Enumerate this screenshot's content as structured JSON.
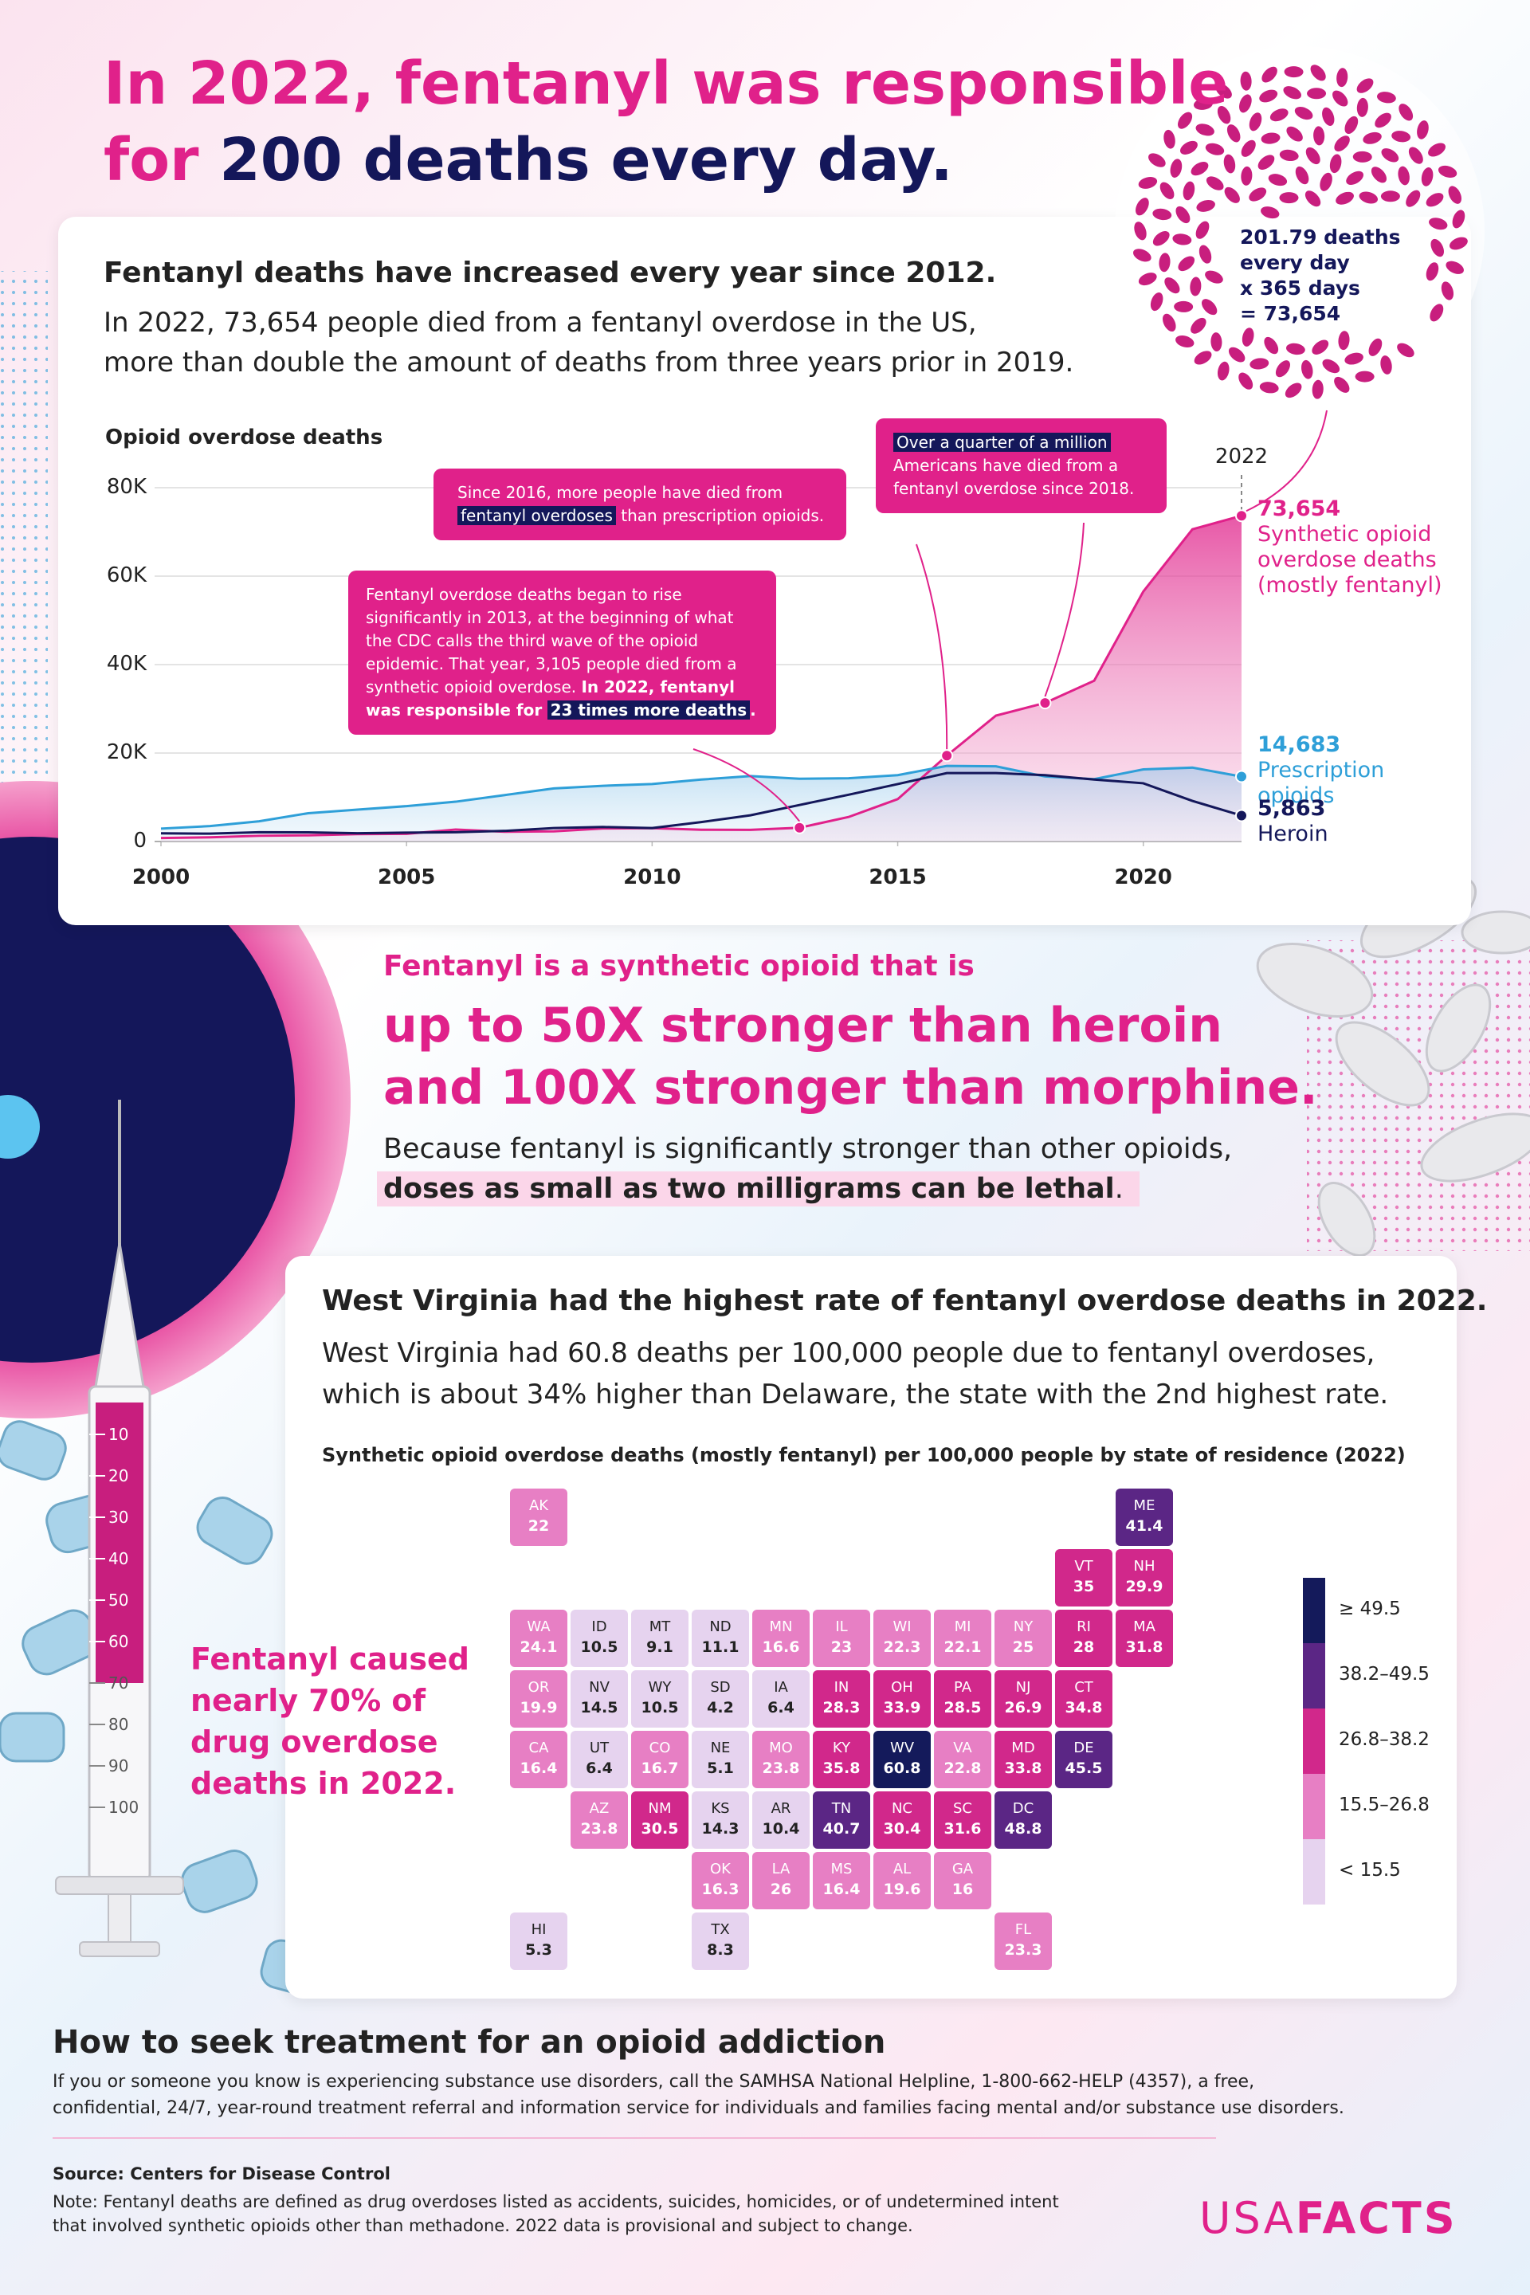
{
  "headline": [
    "In 2022, fentanyl was responsible",
    "for",
    "200 deaths every day."
  ],
  "pill_note": [
    "201.79 deaths",
    "every day",
    "x 365 days",
    "= 73,654"
  ],
  "chart_data": [
    {
      "type": "line",
      "title": "Fentanyl deaths have increased every year since 2012.",
      "description": [
        "In 2022, 73,654 people died from a fentanyl overdose in the US,",
        "more than double the amount of deaths from three years prior in 2019."
      ],
      "y_label": "Opioid overdose deaths",
      "x": [
        2000,
        2001,
        2002,
        2003,
        2004,
        2005,
        2006,
        2007,
        2008,
        2009,
        2010,
        2011,
        2012,
        2013,
        2014,
        2015,
        2016,
        2017,
        2018,
        2019,
        2020,
        2021,
        2022
      ],
      "xlim": [
        2000,
        2022
      ],
      "xticks": [
        2000,
        2005,
        2010,
        2015,
        2020
      ],
      "ylim": [
        0,
        80000
      ],
      "yticks": [
        0,
        {
          "value": 20000,
          "label": "20K"
        },
        {
          "value": 40000,
          "label": "40K"
        },
        {
          "value": 60000,
          "label": "60K"
        },
        {
          "value": 80000,
          "label": "80K"
        }
      ],
      "grid": true,
      "series": [
        {
          "name": "Synthetic opioid overdose deaths (mostly fentanyl)",
          "color": "#e0218a",
          "values": [
            782,
            957,
            1295,
            1400,
            1664,
            1742,
            2707,
            2213,
            2306,
            2946,
            3007,
            2666,
            2628,
            3105,
            5544,
            9580,
            19413,
            28466,
            31335,
            36359,
            56516,
            70601,
            73654
          ],
          "value_labels": [
            null,
            null,
            null,
            null,
            null,
            null,
            null,
            null,
            null,
            null,
            null,
            null,
            null,
            null,
            null,
            null,
            null,
            null,
            null,
            null,
            null,
            null,
            "73,654"
          ]
        },
        {
          "name": "Prescription opioids",
          "color": "#2e9fd8",
          "values": [
            2917,
            3491,
            4573,
            6400,
            7200,
            8000,
            9000,
            10500,
            12000,
            12600,
            13000,
            14000,
            14800,
            14200,
            14300,
            15000,
            17100,
            17000,
            14700,
            14100,
            16300,
            16700,
            14683
          ],
          "value_labels": [
            null,
            null,
            null,
            null,
            null,
            null,
            null,
            null,
            null,
            null,
            null,
            null,
            null,
            null,
            null,
            null,
            null,
            null,
            null,
            null,
            null,
            null,
            "14,683"
          ]
        },
        {
          "name": "Heroin",
          "color": "#14175a",
          "values": [
            1842,
            1779,
            2089,
            2080,
            1878,
            2009,
            2088,
            2399,
            3041,
            3278,
            3036,
            4397,
            5925,
            8257,
            10574,
            12989,
            15469,
            15482,
            14996,
            14019,
            13165,
            9173,
            5863
          ],
          "value_labels": [
            null,
            null,
            null,
            null,
            null,
            null,
            null,
            null,
            null,
            null,
            null,
            null,
            null,
            null,
            null,
            null,
            null,
            null,
            null,
            null,
            null,
            null,
            "5,863"
          ]
        }
      ],
      "annotations": [
        [
          "Fentanyl overdose deaths began to rise significantly in 2013, at the beginning of what the CDC calls the third wave of the opioid epidemic. That year, 3,105 people died from a synthetic opioid overdose.",
          "In 2022, fentanyl was responsible for",
          "23 times more deaths",
          "."
        ],
        [
          "Since 2016, more people have died from",
          "fentanyl overdoses",
          "than prescription opioids."
        ],
        [
          "Over a quarter of a million",
          "Americans have died from a fentanyl overdose since 2018."
        ]
      ]
    },
    {
      "type": "map",
      "title": "West Virginia had the highest rate of fentanyl overdose deaths in 2022.",
      "description": [
        "West Virginia had 60.8 deaths per 100,000 people due to fentanyl overdoses,",
        "which is about 34% higher than Delaware, the state with the 2nd highest rate."
      ],
      "subtitle": "Synthetic opioid overdose deaths (mostly fentanyl) per 100,000 people by state of residence (2022)",
      "legend": [
        {
          "label": "≥ 49.5",
          "color": "#141a5b"
        },
        {
          "label": "38.2–49.5",
          "color": "#5b2685"
        },
        {
          "label": "26.8–38.2",
          "color": "#d1288b"
        },
        {
          "label": "15.5–26.8",
          "color": "#e77fc4"
        },
        {
          "label": "< 15.5",
          "color": "#e6d3ef"
        }
      ],
      "states": [
        {
          "name": "WA",
          "value": 24.1,
          "color": "#e77fc4"
        },
        {
          "name": "OR",
          "value": 19.9,
          "color": "#e77fc4"
        },
        {
          "name": "CA",
          "value": 16.4,
          "color": "#e77fc4"
        },
        {
          "name": "NV",
          "value": 14.5,
          "color": "#e6d3ef"
        },
        {
          "name": "ID",
          "value": 10.5,
          "color": "#e6d3ef"
        },
        {
          "name": "MT",
          "value": 9.1,
          "color": "#e6d3ef"
        },
        {
          "name": "WY",
          "value": 10.5,
          "color": "#e6d3ef"
        },
        {
          "name": "UT",
          "value": 6.4,
          "color": "#e6d3ef"
        },
        {
          "name": "AZ",
          "value": 23.8,
          "color": "#e77fc4"
        },
        {
          "name": "CO",
          "value": 16.7,
          "color": "#e77fc4"
        },
        {
          "name": "NM",
          "value": 30.5,
          "color": "#d1288b"
        },
        {
          "name": "ND",
          "value": 11.1,
          "color": "#e6d3ef"
        },
        {
          "name": "SD",
          "value": 4.2,
          "color": "#e6d3ef"
        },
        {
          "name": "NE",
          "value": 5.1,
          "color": "#e6d3ef"
        },
        {
          "name": "KS",
          "value": 14.3,
          "color": "#e6d3ef"
        },
        {
          "name": "OK",
          "value": 16.3,
          "color": "#e77fc4"
        },
        {
          "name": "TX",
          "value": 8.3,
          "color": "#e6d3ef"
        },
        {
          "name": "MN",
          "value": 16.6,
          "color": "#e77fc4"
        },
        {
          "name": "IA",
          "value": 6.4,
          "color": "#e6d3ef"
        },
        {
          "name": "MO",
          "value": 23.8,
          "color": "#e77fc4"
        },
        {
          "name": "AR",
          "value": 10.4,
          "color": "#e6d3ef"
        },
        {
          "name": "LA",
          "value": 26,
          "color": "#e77fc4"
        },
        {
          "name": "WI",
          "value": 22.3,
          "color": "#e77fc4"
        },
        {
          "name": "IL",
          "value": 23,
          "color": "#e77fc4"
        },
        {
          "name": "MI",
          "value": 22.1,
          "color": "#e77fc4"
        },
        {
          "name": "IN",
          "value": 28.3,
          "color": "#d1288b"
        },
        {
          "name": "OH",
          "value": 33.9,
          "color": "#d1288b"
        },
        {
          "name": "KY",
          "value": 35.8,
          "color": "#d1288b"
        },
        {
          "name": "TN",
          "value": 40.7,
          "color": "#5b2685"
        },
        {
          "name": "MS",
          "value": 16.4,
          "color": "#e77fc4"
        },
        {
          "name": "AL",
          "value": 19.6,
          "color": "#e77fc4"
        },
        {
          "name": "GA",
          "value": 16,
          "color": "#e77fc4"
        },
        {
          "name": "FL",
          "value": 23.3,
          "color": "#e77fc4"
        },
        {
          "name": "SC",
          "value": 31.6,
          "color": "#d1288b"
        },
        {
          "name": "NC",
          "value": 30.4,
          "color": "#d1288b"
        },
        {
          "name": "VA",
          "value": 22.8,
          "color": "#e77fc4"
        },
        {
          "name": "WV",
          "value": 60.8,
          "color": "#141a5b"
        },
        {
          "name": "PA",
          "value": 28.5,
          "color": "#d1288b"
        },
        {
          "name": "NY",
          "value": 25,
          "color": "#e77fc4"
        },
        {
          "name": "VT",
          "value": 35,
          "color": "#d1288b"
        },
        {
          "name": "ME",
          "value": 41.4,
          "color": "#5b2685"
        },
        {
          "name": "NH",
          "value": 29.9,
          "color": "#d1288b"
        },
        {
          "name": "MA",
          "value": 31.8,
          "color": "#d1288b"
        },
        {
          "name": "RI",
          "value": 28,
          "color": "#d1288b"
        },
        {
          "name": "CT",
          "value": 34.8,
          "color": "#d1288b"
        },
        {
          "name": "NJ",
          "value": 26.9,
          "color": "#d1288b"
        },
        {
          "name": "DE",
          "value": 45.5,
          "color": "#5b2685"
        },
        {
          "name": "MD",
          "value": 33.8,
          "color": "#d1288b"
        },
        {
          "name": "DC",
          "value": 48.8,
          "color": "#5b2685"
        },
        {
          "name": "AK",
          "value": 22,
          "color": "#e77fc4"
        },
        {
          "name": "HI",
          "value": 5.3,
          "color": "#e6d3ef"
        }
      ]
    }
  ],
  "strength": {
    "lead": "Fentanyl is a synthetic opioid that is",
    "big": [
      "up to 50X stronger than heroin",
      "and 100X stronger than morphine."
    ],
    "body": "Because fentanyl is significantly stronger than other opioids,",
    "highlight": "doses as small as two milligrams can be lethal",
    "end": "."
  },
  "syringe_marks": [
    10,
    20,
    30,
    40,
    50,
    60,
    70,
    80,
    90,
    100
  ],
  "left_stat": [
    "Fentanyl caused",
    "nearly 70% of",
    "drug overdose",
    "deaths in 2022."
  ],
  "footer": {
    "title": "How to seek treatment for an opioid addiction",
    "body": [
      "If you or someone you know is experiencing substance use disorders, call the SAMHSA National Helpline, 1-800-662-HELP (4357), a free,",
      "confidential, 24/7, year-round treatment referral and information service for individuals and families facing mental and/or substance use disorders."
    ],
    "source": "Source: Centers for Disease Control",
    "note": [
      "Note: Fentanyl deaths are defined as drug overdoses listed as accidents, suicides, homicides, or of undetermined intent",
      "that involved synthetic opioids other than methadone. 2022 data is provisional and subject to change."
    ]
  },
  "logo": [
    "USA",
    "FACTS"
  ]
}
